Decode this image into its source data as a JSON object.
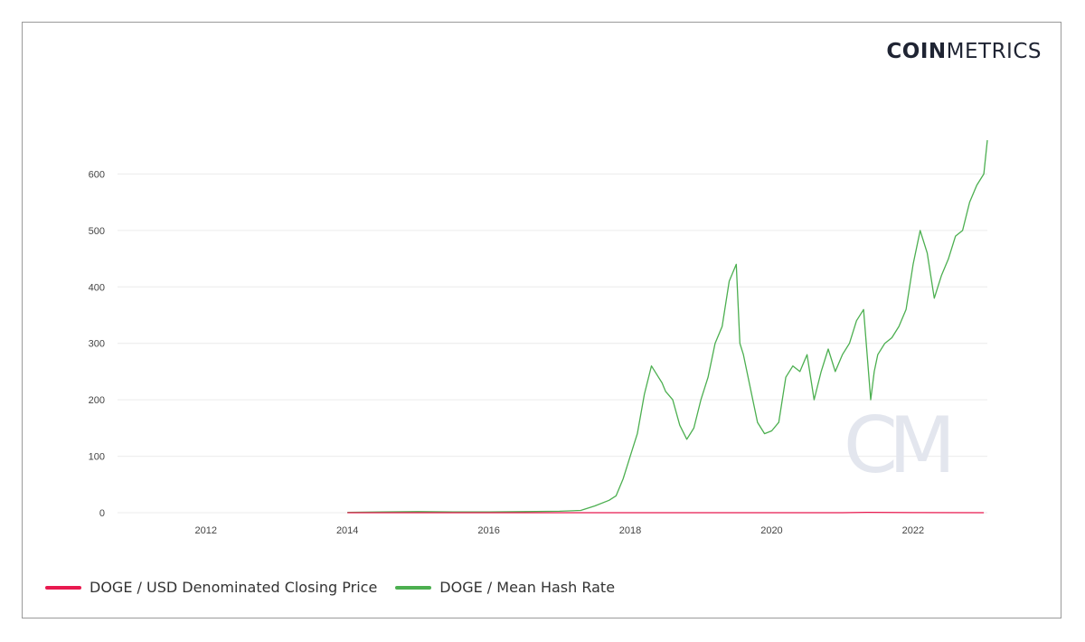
{
  "brand": {
    "part1": "COIN",
    "part2": "METRICS"
  },
  "watermark": "CM",
  "colors": {
    "price": "#e8194f",
    "hash": "#4caf50",
    "grid": "#ececec",
    "axis_text": "#444444"
  },
  "chart_data": {
    "type": "line",
    "title": "",
    "xlabel": "",
    "ylabel": "",
    "xlim": [
      2010.75,
      2023.05
    ],
    "ylim": [
      0,
      700
    ],
    "x_ticks": [
      "2012",
      "2014",
      "2016",
      "2018",
      "2020",
      "2022"
    ],
    "y_ticks": [
      "0",
      "100",
      "200",
      "300",
      "400",
      "500",
      "600"
    ],
    "grid": "horizontal",
    "legend_position": "bottom-left",
    "series": [
      {
        "name": "DOGE / USD Denominated Closing Price",
        "color": "#e8194f",
        "x": [
          2014.0,
          2015.0,
          2016.0,
          2017.0,
          2018.0,
          2019.0,
          2020.0,
          2021.0,
          2021.35,
          2022.0,
          2023.0
        ],
        "y": [
          0.0005,
          0.0002,
          0.0002,
          0.0003,
          0.008,
          0.002,
          0.002,
          0.005,
          0.6,
          0.15,
          0.08
        ]
      },
      {
        "name": "DOGE / Mean Hash Rate",
        "color": "#4caf50",
        "x": [
          2014.0,
          2014.5,
          2015.0,
          2015.5,
          2016.0,
          2016.5,
          2017.0,
          2017.3,
          2017.5,
          2017.7,
          2017.8,
          2017.9,
          2017.95,
          2018.0,
          2018.1,
          2018.2,
          2018.3,
          2018.4,
          2018.45,
          2018.5,
          2018.6,
          2018.7,
          2018.8,
          2018.9,
          2019.0,
          2019.1,
          2019.2,
          2019.3,
          2019.4,
          2019.5,
          2019.55,
          2019.6,
          2019.7,
          2019.8,
          2019.9,
          2020.0,
          2020.1,
          2020.2,
          2020.3,
          2020.4,
          2020.5,
          2020.6,
          2020.7,
          2020.8,
          2020.9,
          2021.0,
          2021.1,
          2021.2,
          2021.3,
          2021.4,
          2021.45,
          2021.5,
          2021.6,
          2021.7,
          2021.8,
          2021.9,
          2022.0,
          2022.1,
          2022.2,
          2022.3,
          2022.4,
          2022.5,
          2022.6,
          2022.7,
          2022.8,
          2022.9,
          2023.0,
          2023.05
        ],
        "y": [
          0.5,
          1.5,
          2,
          1.5,
          1.5,
          2,
          2.5,
          4,
          12,
          22,
          30,
          60,
          80,
          100,
          140,
          210,
          260,
          240,
          230,
          215,
          200,
          155,
          130,
          150,
          200,
          240,
          300,
          330,
          410,
          440,
          300,
          280,
          220,
          160,
          140,
          145,
          160,
          240,
          260,
          250,
          280,
          200,
          250,
          290,
          250,
          280,
          300,
          340,
          360,
          200,
          250,
          280,
          300,
          310,
          330,
          360,
          440,
          500,
          460,
          380,
          420,
          450,
          490,
          500,
          550,
          580,
          600,
          660
        ]
      }
    ]
  }
}
